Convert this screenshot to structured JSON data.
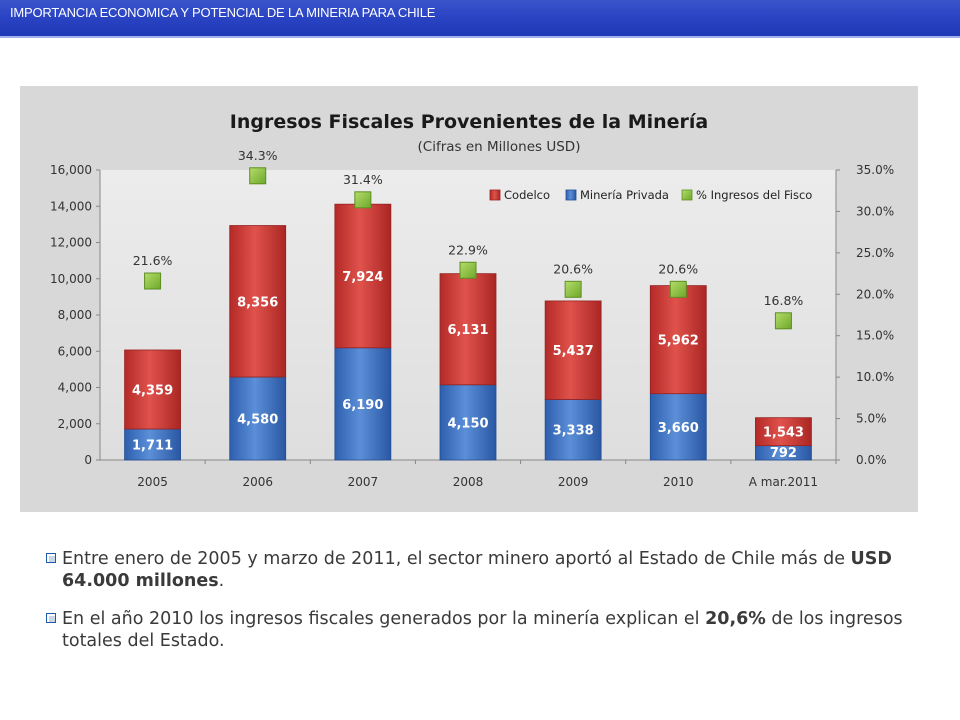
{
  "header": {
    "title": "IMPORTANCIA  ECONOMICA Y POTENCIAL DE LA MINERIA PARA CHILE"
  },
  "chart_data": {
    "type": "bar",
    "stacked": true,
    "title": "Ingresos Fiscales Provenientes de la Minería",
    "subtitle": "(Cifras en Millones USD)",
    "categories": [
      "2005",
      "2006",
      "2007",
      "2008",
      "2009",
      "2010",
      "A mar.2011"
    ],
    "series": [
      {
        "name": "Minería Privada",
        "color": "#3f74c4",
        "values": [
          1711,
          4580,
          6190,
          4150,
          3338,
          3660,
          792
        ],
        "labels": [
          "1,711",
          "4,580",
          "6,190",
          "4,150",
          "3,338",
          "3,660",
          "792"
        ]
      },
      {
        "name": "Codelco",
        "color": "#d03b35",
        "values": [
          4359,
          8356,
          7924,
          6131,
          5437,
          5962,
          1543
        ],
        "labels": [
          "4,359",
          "8,356",
          "7,924",
          "6,131",
          "5,437",
          "5,962",
          "1,543"
        ]
      }
    ],
    "line_series": {
      "name": "% Ingresos del Fisco",
      "color": "#8fc73e",
      "axis": "right",
      "values": [
        21.6,
        34.3,
        31.4,
        22.9,
        20.6,
        20.6,
        16.8
      ],
      "labels": [
        "21.6%",
        "34.3%",
        "31.4%",
        "22.9%",
        "20.6%",
        "20.6%",
        "16.8%"
      ]
    },
    "legend": [
      "Codelco",
      "Minería Privada",
      "% Ingresos del Fisco"
    ],
    "legend_position": "top-right",
    "ylim": [
      0,
      16000
    ],
    "y_ticks": [
      "0",
      "2,000",
      "4,000",
      "6,000",
      "8,000",
      "10,000",
      "12,000",
      "14,000",
      "16,000"
    ],
    "y2lim": [
      0,
      35
    ],
    "y2_ticks": [
      "0.0%",
      "5.0%",
      "10.0%",
      "15.0%",
      "20.0%",
      "25.0%",
      "30.0%",
      "35.0%"
    ],
    "grid": false
  },
  "bullets": [
    {
      "parts": [
        "Entre enero de 2005  y marzo de 2011, el sector minero aportó al Estado de Chile más de ",
        "USD 64.000 millones",
        "."
      ]
    },
    {
      "parts": [
        "En el año 2010 los ingresos fiscales generados por la minería explican el ",
        "20,6%",
        " de los ingresos totales del Estado."
      ]
    }
  ]
}
